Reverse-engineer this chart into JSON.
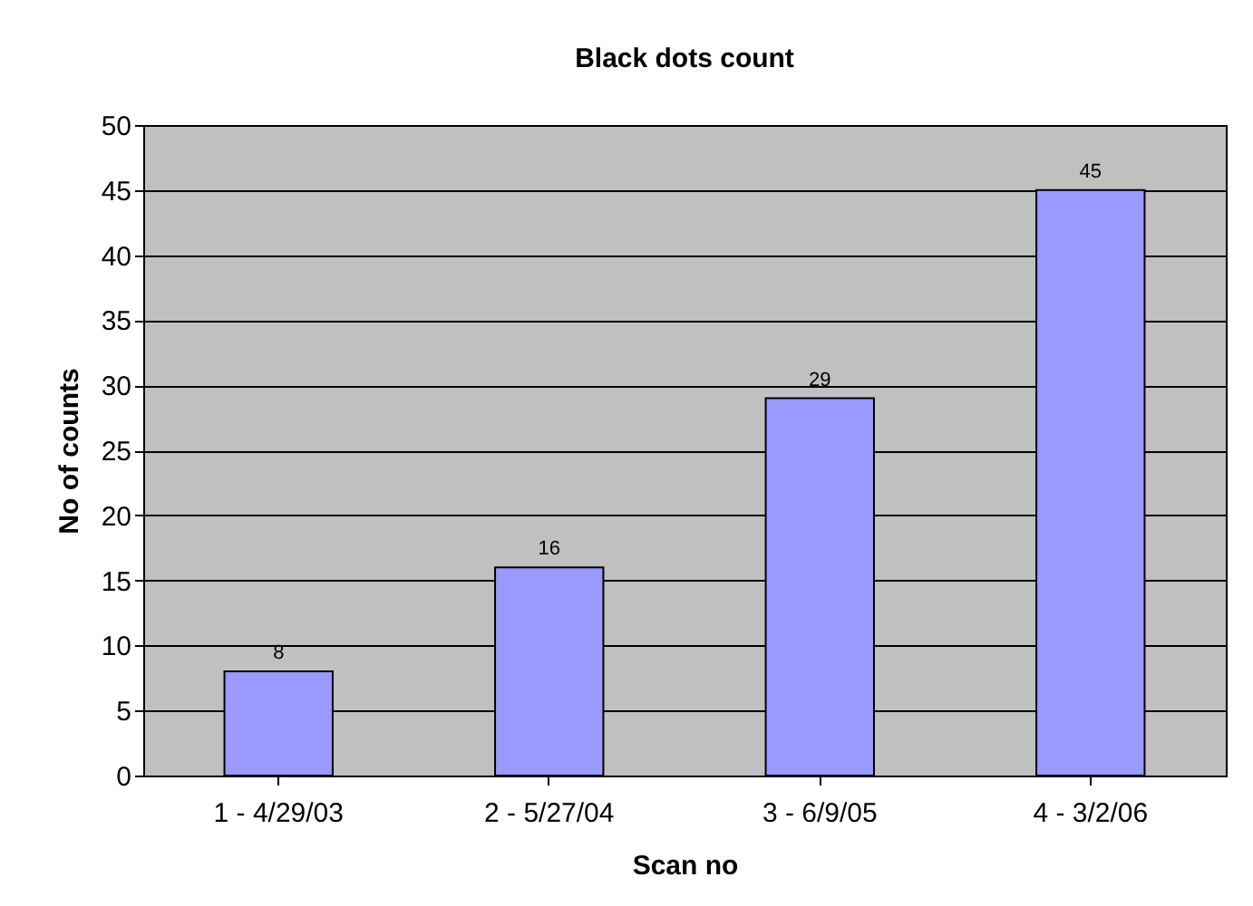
{
  "chart_data": {
    "type": "bar",
    "title": "Black dots count",
    "xlabel": "Scan no",
    "ylabel": "No of counts",
    "categories": [
      "1 - 4/29/03",
      "2 - 5/27/04",
      "3 - 6/9/05",
      "4 - 3/2/06"
    ],
    "values": [
      8,
      16,
      29,
      45
    ],
    "color": "#9999ff",
    "ylim": [
      0,
      50
    ],
    "yticks": [
      0,
      5,
      10,
      15,
      20,
      25,
      30,
      35,
      40,
      45,
      50
    ],
    "grid": "y",
    "data_labels": true
  }
}
